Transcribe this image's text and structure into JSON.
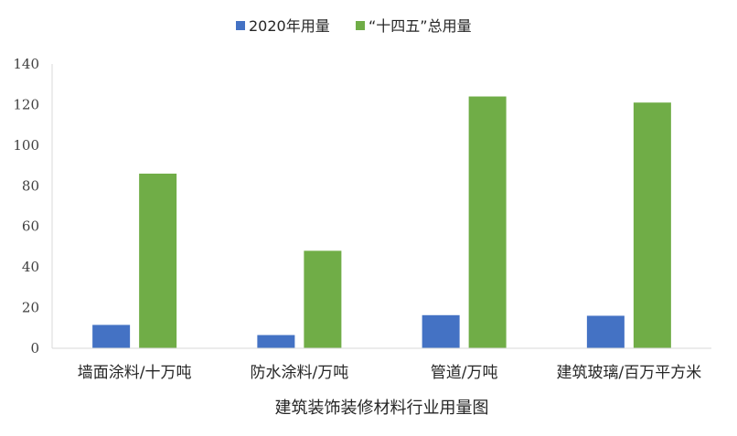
{
  "chart_data": {
    "type": "bar",
    "title": "",
    "xlabel": "建筑装饰装修材料行业用量图",
    "ylabel": "",
    "categories": [
      "墙面涂料/十万吨",
      "防水涂料/万吨",
      "管道/万吨",
      "建筑玻璃/百万平方米"
    ],
    "series": [
      {
        "name": "2020年用量",
        "color": "#4472C4",
        "values": [
          11.5,
          6.5,
          16.3,
          16.0
        ]
      },
      {
        "name": "“十四五”总用量",
        "color": "#70AD47",
        "values": [
          86,
          48,
          124,
          121
        ]
      }
    ],
    "ylim": [
      0,
      140
    ],
    "yticks": [
      0,
      20,
      40,
      60,
      80,
      100,
      120,
      140
    ],
    "grid": false,
    "legend_position": "top-center"
  }
}
